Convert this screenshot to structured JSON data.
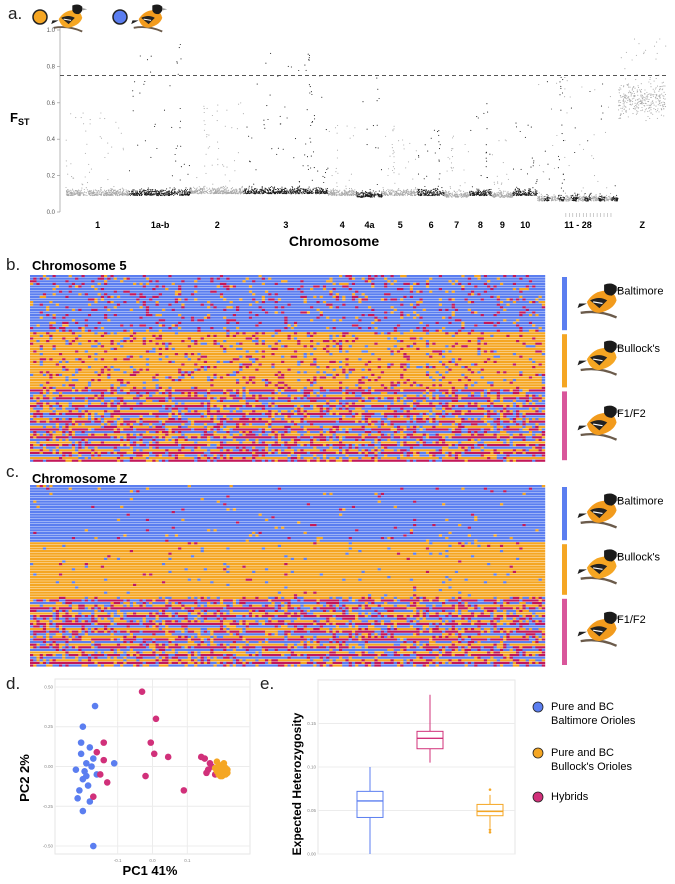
{
  "figure": {
    "panel_labels": [
      "a.",
      "b.",
      "c.",
      "d.",
      "e."
    ],
    "colors": {
      "baltimore": "#5b7ef0",
      "bullock": "#f5a623",
      "hybrid": "#d1307a",
      "het": "#c2185b",
      "hybrid_bar": "#d9569b",
      "fst_dark": "#1a1a1a",
      "fst_light": "#a8a8a8"
    }
  },
  "chart_data": [
    {
      "id": "a",
      "type": "scatter",
      "title": "",
      "xlabel": "Chromosome",
      "ylabel": "FST",
      "ylabel_main": "F",
      "ylabel_sub": "ST",
      "ylim": [
        0,
        1.0
      ],
      "yticks": [
        "0.0",
        "0.2",
        "0.4",
        "0.6",
        "0.8",
        "1.0"
      ],
      "threshold": 0.75,
      "chromosomes": [
        {
          "label": "1",
          "shade": "light",
          "mean": 0.13,
          "peak": 0.55
        },
        {
          "label": "1a-b",
          "shade": "dark",
          "mean": 0.13,
          "peak": 0.93
        },
        {
          "label": "2",
          "shade": "light",
          "mean": 0.14,
          "peak": 0.6
        },
        {
          "label": "3",
          "shade": "dark",
          "mean": 0.14,
          "peak": 0.88
        },
        {
          "label": "4",
          "shade": "light",
          "mean": 0.13,
          "peak": 0.55
        },
        {
          "label": "4a",
          "shade": "dark",
          "mean": 0.12,
          "peak": 0.78
        },
        {
          "label": "5",
          "shade": "light",
          "mean": 0.13,
          "peak": 0.5
        },
        {
          "label": "6",
          "shade": "dark",
          "mean": 0.13,
          "peak": 0.45
        },
        {
          "label": "7",
          "shade": "light",
          "mean": 0.12,
          "peak": 0.42
        },
        {
          "label": "8",
          "shade": "dark",
          "mean": 0.13,
          "peak": 0.6
        },
        {
          "label": "9",
          "shade": "light",
          "mean": 0.12,
          "peak": 0.4
        },
        {
          "label": "10",
          "shade": "dark",
          "mean": 0.13,
          "peak": 0.5
        },
        {
          "label": "11 - 28",
          "shade": "mixed",
          "mean": 0.1,
          "peak": 0.75
        },
        {
          "label": "Z",
          "shade": "light",
          "mean": 0.62,
          "peak": 0.97
        }
      ],
      "bird_icons": [
        "bullock-oriole-icon",
        "baltimore-oriole-icon"
      ]
    },
    {
      "id": "b",
      "type": "heatmap",
      "title": "Chromosome 5",
      "groups": [
        "Baltimore",
        "Bullock's",
        "F1/F2"
      ],
      "states": [
        "baltimore-homozygous",
        "bullock-homozygous",
        "heterozygous"
      ]
    },
    {
      "id": "c",
      "type": "heatmap",
      "title": "Chromosome Z",
      "groups": [
        "Baltimore",
        "Bullock's",
        "F1/F2"
      ],
      "states": [
        "baltimore-homozygous",
        "bullock-homozygous",
        "heterozygous"
      ]
    },
    {
      "id": "d",
      "type": "scatter",
      "xlabel": "PC1 41%",
      "ylabel": "PC2 2%",
      "xticks": [
        "-0.1",
        "0.0",
        "0.1"
      ],
      "yticks": [
        "-0.50",
        "-0.25",
        "0.00",
        "0.25",
        "0.50"
      ],
      "xlim": [
        -0.28,
        0.28
      ],
      "ylim": [
        -0.55,
        0.55
      ],
      "series": [
        {
          "name": "Baltimore",
          "points": [
            [
              -0.165,
              0.38
            ],
            [
              -0.2,
              0.25
            ],
            [
              -0.18,
              0.12
            ],
            [
              -0.205,
              0.08
            ],
            [
              -0.19,
              0.02
            ],
            [
              -0.175,
              0.0
            ],
            [
              -0.22,
              -0.02
            ],
            [
              -0.16,
              -0.05
            ],
            [
              -0.2,
              -0.08
            ],
            [
              -0.185,
              -0.12
            ],
            [
              -0.21,
              -0.15
            ],
            [
              -0.17,
              0.05
            ],
            [
              -0.195,
              -0.03
            ],
            [
              -0.18,
              -0.22
            ],
            [
              -0.2,
              -0.28
            ],
            [
              -0.17,
              -0.5
            ],
            [
              -0.11,
              0.02
            ],
            [
              -0.205,
              0.15
            ],
            [
              -0.19,
              -0.06
            ],
            [
              -0.215,
              -0.2
            ]
          ]
        },
        {
          "name": "Hybrids",
          "points": [
            [
              -0.03,
              0.47
            ],
            [
              0.01,
              0.3
            ],
            [
              -0.005,
              0.15
            ],
            [
              0.005,
              0.08
            ],
            [
              0.045,
              0.06
            ],
            [
              -0.02,
              -0.06
            ],
            [
              0.09,
              -0.15
            ],
            [
              -0.14,
              0.04
            ],
            [
              -0.15,
              -0.05
            ],
            [
              -0.16,
              0.09
            ],
            [
              -0.13,
              -0.1
            ],
            [
              -0.17,
              -0.19
            ],
            [
              -0.14,
              0.15
            ],
            [
              0.14,
              0.06
            ],
            [
              0.15,
              0.05
            ],
            [
              0.16,
              -0.02
            ],
            [
              0.17,
              0.0
            ],
            [
              0.155,
              -0.04
            ],
            [
              0.165,
              0.02
            ],
            [
              0.18,
              -0.05
            ]
          ]
        },
        {
          "name": "Bullock's",
          "points": [
            [
              0.185,
              0.03
            ],
            [
              0.19,
              -0.02
            ],
            [
              0.195,
              0.0
            ],
            [
              0.2,
              -0.04
            ],
            [
              0.19,
              -0.05
            ],
            [
              0.205,
              -0.03
            ],
            [
              0.21,
              -0.01
            ],
            [
              0.2,
              0.01
            ],
            [
              0.185,
              -0.03
            ],
            [
              0.215,
              -0.04
            ],
            [
              0.195,
              -0.06
            ],
            [
              0.205,
              0.02
            ],
            [
              0.19,
              0.0
            ],
            [
              0.2,
              -0.02
            ],
            [
              0.21,
              -0.05
            ],
            [
              0.18,
              -0.01
            ],
            [
              0.195,
              -0.04
            ],
            [
              0.215,
              -0.02
            ],
            [
              0.2,
              -0.06
            ],
            [
              0.205,
              -0.05
            ]
          ]
        }
      ]
    },
    {
      "id": "e",
      "type": "box",
      "ylabel": "Expected Heterozygosity",
      "yticks": [
        "0.00",
        "0.05",
        "0.10",
        "0.15"
      ],
      "ylim": [
        0,
        0.2
      ],
      "boxes": [
        {
          "name": "Pure and BC Baltimore Orioles",
          "legend_line1": "Pure and BC",
          "legend_line2": "Baltimore Orioles",
          "min": 0.0,
          "q1": 0.042,
          "median": 0.061,
          "q3": 0.072,
          "max": 0.1,
          "outliers": []
        },
        {
          "name": "Hybrids",
          "legend_line1": "Hybrids",
          "legend_line2": "",
          "min": 0.105,
          "q1": 0.121,
          "median": 0.133,
          "q3": 0.141,
          "max": 0.183,
          "outliers": []
        },
        {
          "name": "Pure and BC Bullock's Orioles",
          "legend_line1": "Pure and BC",
          "legend_line2": "Bullock's Orioles",
          "min": 0.03,
          "q1": 0.044,
          "median": 0.049,
          "q3": 0.057,
          "max": 0.068,
          "outliers": [
            0.028,
            0.025,
            0.074
          ]
        }
      ]
    }
  ]
}
